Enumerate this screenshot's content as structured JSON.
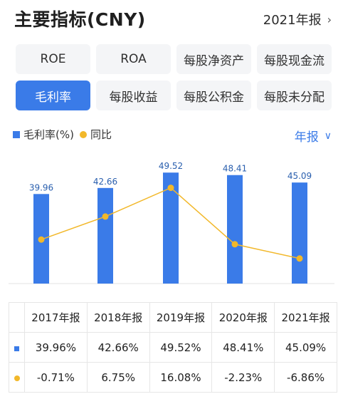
{
  "header": {
    "title": "主要指标(CNY)",
    "period": "2021年报",
    "chevron_icon": "chevron-right-icon"
  },
  "tabs": [
    {
      "label": "ROE",
      "active": false
    },
    {
      "label": "ROA",
      "active": false
    },
    {
      "label": "每股净资产",
      "active": false
    },
    {
      "label": "每股现金流",
      "active": false
    },
    {
      "label": "毛利率",
      "active": true
    },
    {
      "label": "每股收益",
      "active": false
    },
    {
      "label": "每股公积金",
      "active": false
    },
    {
      "label": "每股未分配",
      "active": false
    }
  ],
  "legend": {
    "bar_label": "毛利率(%)",
    "line_label": "同比",
    "frequency": "年报"
  },
  "colors": {
    "bar": "#3a7be8",
    "line": "#f2b82a",
    "positive": "#e23b3b",
    "negative": "#2aa06a"
  },
  "chart_data": {
    "type": "bar",
    "categories": [
      "2017年报",
      "2018年报",
      "2019年报",
      "2020年报",
      "2021年报"
    ],
    "series": [
      {
        "name": "毛利率(%)",
        "type": "bar",
        "values": [
          39.96,
          42.66,
          49.52,
          48.41,
          45.09
        ]
      },
      {
        "name": "同比",
        "type": "line",
        "values": [
          -0.71,
          6.75,
          16.08,
          -2.23,
          -6.86
        ]
      }
    ],
    "data_labels": [
      "39.96",
      "42.66",
      "49.52",
      "48.41",
      "45.09"
    ],
    "ylim_bar": [
      0,
      55
    ],
    "ylim_line": [
      -15,
      25
    ]
  },
  "table": {
    "headers": [
      "2017年报",
      "2018年报",
      "2019年报",
      "2020年报",
      "2021年报"
    ],
    "rows": [
      {
        "marker": "bar",
        "cells": [
          "39.96%",
          "42.66%",
          "49.52%",
          "48.41%",
          "45.09%"
        ]
      },
      {
        "marker": "line",
        "cells": [
          "-0.71%",
          "6.75%",
          "16.08%",
          "-2.23%",
          "-6.86%"
        ]
      }
    ]
  }
}
